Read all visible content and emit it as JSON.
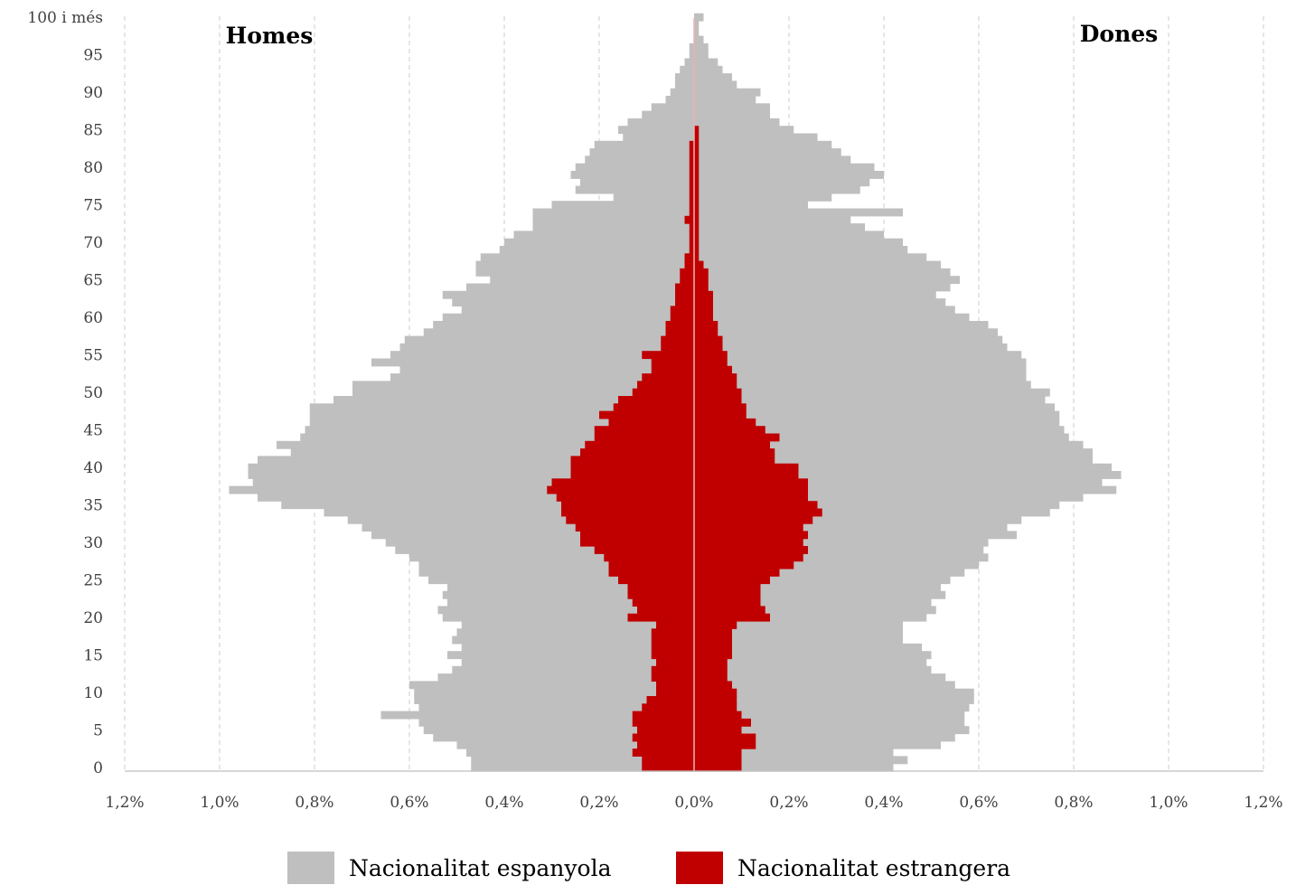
{
  "colors": {
    "spanish": "#bfbfbf",
    "foreign": "#c00000",
    "grid": "#d9d9d9",
    "axis": "#bfbfbf",
    "center_line": "#e8b4b4"
  },
  "legend": {
    "spanish_label": "Nacionalitat espanyola",
    "foreign_label": "Nacionalitat estrangera"
  },
  "chart_data": {
    "type": "bar",
    "orientation": "horizontal",
    "subtype": "population-pyramid",
    "left_label": "Homes",
    "right_label": "Dones",
    "x_unit": "percent of population",
    "xlim": [
      -1.2,
      1.2
    ],
    "x_tick_values": [
      -1.2,
      -1.0,
      -0.8,
      -0.6,
      -0.4,
      -0.2,
      0.0,
      0.2,
      0.4,
      0.6,
      0.8,
      1.0,
      1.2
    ],
    "x_tick_labels": [
      "1,2%",
      "1,0%",
      "0,8%",
      "0,6%",
      "0,4%",
      "0,2%",
      "0,0%",
      "0,2%",
      "0,4%",
      "0,6%",
      "0,8%",
      "1,0%",
      "1,2%"
    ],
    "y_tick_ages": [
      0,
      5,
      10,
      15,
      20,
      25,
      30,
      35,
      40,
      45,
      50,
      55,
      60,
      65,
      70,
      75,
      80,
      85,
      90,
      95,
      100
    ],
    "y_tick_labels": [
      "0",
      "5",
      "10",
      "15",
      "20",
      "25",
      "30",
      "35",
      "40",
      "45",
      "50",
      "55",
      "60",
      "65",
      "70",
      "75",
      "80",
      "85",
      "90",
      "95",
      "100 i més"
    ],
    "grid": "vertical dashed",
    "legend_position": "bottom",
    "categories": [
      "0",
      "1",
      "2",
      "3",
      "4",
      "5",
      "6",
      "7",
      "8",
      "9",
      "10",
      "11",
      "12",
      "13",
      "14",
      "15",
      "16",
      "17",
      "18",
      "19",
      "20",
      "21",
      "22",
      "23",
      "24",
      "25",
      "26",
      "27",
      "28",
      "29",
      "30",
      "31",
      "32",
      "33",
      "34",
      "35",
      "36",
      "37",
      "38",
      "39",
      "40",
      "41",
      "42",
      "43",
      "44",
      "45",
      "46",
      "47",
      "48",
      "49",
      "50",
      "51",
      "52",
      "53",
      "54",
      "55",
      "56",
      "57",
      "58",
      "59",
      "60",
      "61",
      "62",
      "63",
      "64",
      "65",
      "66",
      "67",
      "68",
      "69",
      "70",
      "71",
      "72",
      "73",
      "74",
      "75",
      "76",
      "77",
      "78",
      "79",
      "80",
      "81",
      "82",
      "83",
      "84",
      "85",
      "86",
      "87",
      "88",
      "89",
      "90",
      "91",
      "92",
      "93",
      "94",
      "95",
      "96",
      "97",
      "98",
      "99",
      "100 i més"
    ],
    "series": [
      {
        "name": "Nacionalitat espanyola",
        "group": "Homes",
        "values": [
          0.47,
          0.47,
          0.48,
          0.5,
          0.55,
          0.57,
          0.58,
          0.66,
          0.58,
          0.59,
          0.59,
          0.6,
          0.54,
          0.51,
          0.49,
          0.52,
          0.49,
          0.51,
          0.5,
          0.49,
          0.53,
          0.54,
          0.52,
          0.53,
          0.52,
          0.56,
          0.58,
          0.58,
          0.6,
          0.63,
          0.65,
          0.68,
          0.7,
          0.73,
          0.78,
          0.87,
          0.92,
          0.98,
          0.93,
          0.94,
          0.94,
          0.92,
          0.85,
          0.88,
          0.83,
          0.82,
          0.81,
          0.81,
          0.81,
          0.76,
          0.72,
          0.72,
          0.64,
          0.62,
          0.68,
          0.64,
          0.62,
          0.61,
          0.57,
          0.55,
          0.53,
          0.49,
          0.51,
          0.53,
          0.48,
          0.43,
          0.46,
          0.46,
          0.45,
          0.41,
          0.4,
          0.38,
          0.34,
          0.34,
          0.34,
          0.3,
          0.17,
          0.25,
          0.24,
          0.26,
          0.25,
          0.23,
          0.22,
          0.21,
          0.15,
          0.16,
          0.14,
          0.11,
          0.09,
          0.06,
          0.05,
          0.04,
          0.04,
          0.03,
          0.02,
          0.01,
          0.01,
          0.0,
          0.0,
          0.0,
          0.0
        ]
      },
      {
        "name": "Nacionalitat estrangera",
        "group": "Homes",
        "values": [
          0.11,
          0.11,
          0.13,
          0.12,
          0.13,
          0.12,
          0.13,
          0.13,
          0.11,
          0.1,
          0.08,
          0.08,
          0.09,
          0.09,
          0.08,
          0.09,
          0.09,
          0.09,
          0.09,
          0.08,
          0.14,
          0.12,
          0.13,
          0.14,
          0.14,
          0.16,
          0.18,
          0.18,
          0.19,
          0.21,
          0.24,
          0.24,
          0.25,
          0.27,
          0.28,
          0.28,
          0.29,
          0.31,
          0.3,
          0.26,
          0.26,
          0.26,
          0.24,
          0.23,
          0.21,
          0.21,
          0.18,
          0.2,
          0.17,
          0.16,
          0.13,
          0.12,
          0.11,
          0.09,
          0.09,
          0.11,
          0.07,
          0.07,
          0.06,
          0.06,
          0.05,
          0.05,
          0.04,
          0.04,
          0.04,
          0.03,
          0.03,
          0.02,
          0.02,
          0.01,
          0.01,
          0.01,
          0.01,
          0.02,
          0.01,
          0.01,
          0.01,
          0.01,
          0.01,
          0.01,
          0.01,
          0.01,
          0.01,
          0.01,
          0.0,
          0.0,
          0.0,
          0.0,
          0.0,
          0.0,
          0.0,
          0.0,
          0.0,
          0.0,
          0.0,
          0.0,
          0.0,
          0.0,
          0.0,
          0.0,
          0.0
        ]
      },
      {
        "name": "Nacionalitat espanyola",
        "group": "Dones",
        "values": [
          0.42,
          0.45,
          0.42,
          0.52,
          0.55,
          0.58,
          0.57,
          0.57,
          0.58,
          0.59,
          0.59,
          0.55,
          0.53,
          0.5,
          0.49,
          0.5,
          0.48,
          0.44,
          0.44,
          0.44,
          0.49,
          0.51,
          0.5,
          0.53,
          0.52,
          0.54,
          0.57,
          0.6,
          0.62,
          0.61,
          0.62,
          0.68,
          0.66,
          0.69,
          0.75,
          0.77,
          0.82,
          0.89,
          0.86,
          0.9,
          0.88,
          0.84,
          0.84,
          0.82,
          0.79,
          0.78,
          0.77,
          0.77,
          0.76,
          0.74,
          0.75,
          0.71,
          0.7,
          0.7,
          0.7,
          0.69,
          0.66,
          0.65,
          0.64,
          0.62,
          0.58,
          0.55,
          0.53,
          0.51,
          0.54,
          0.56,
          0.54,
          0.52,
          0.49,
          0.45,
          0.44,
          0.4,
          0.36,
          0.33,
          0.44,
          0.24,
          0.29,
          0.35,
          0.37,
          0.4,
          0.38,
          0.33,
          0.31,
          0.29,
          0.26,
          0.21,
          0.18,
          0.16,
          0.16,
          0.13,
          0.14,
          0.09,
          0.08,
          0.06,
          0.05,
          0.03,
          0.03,
          0.02,
          0.01,
          0.01,
          0.02
        ]
      },
      {
        "name": "Nacionalitat estrangera",
        "group": "Dones",
        "values": [
          0.1,
          0.1,
          0.1,
          0.13,
          0.13,
          0.1,
          0.12,
          0.1,
          0.09,
          0.09,
          0.09,
          0.08,
          0.07,
          0.07,
          0.07,
          0.08,
          0.08,
          0.08,
          0.08,
          0.09,
          0.16,
          0.15,
          0.14,
          0.14,
          0.14,
          0.16,
          0.18,
          0.21,
          0.23,
          0.24,
          0.23,
          0.24,
          0.23,
          0.25,
          0.27,
          0.26,
          0.24,
          0.24,
          0.24,
          0.22,
          0.22,
          0.17,
          0.17,
          0.16,
          0.18,
          0.15,
          0.13,
          0.11,
          0.11,
          0.1,
          0.1,
          0.09,
          0.09,
          0.08,
          0.07,
          0.07,
          0.06,
          0.06,
          0.05,
          0.05,
          0.04,
          0.04,
          0.04,
          0.04,
          0.03,
          0.03,
          0.03,
          0.02,
          0.01,
          0.01,
          0.01,
          0.01,
          0.01,
          0.01,
          0.01,
          0.01,
          0.01,
          0.01,
          0.01,
          0.01,
          0.01,
          0.01,
          0.01,
          0.01,
          0.01,
          0.01,
          0.0,
          0.0,
          0.0,
          0.0,
          0.0,
          0.0,
          0.0,
          0.0,
          0.0,
          0.0,
          0.0,
          0.0,
          0.0,
          0.0,
          0.0
        ]
      }
    ]
  }
}
